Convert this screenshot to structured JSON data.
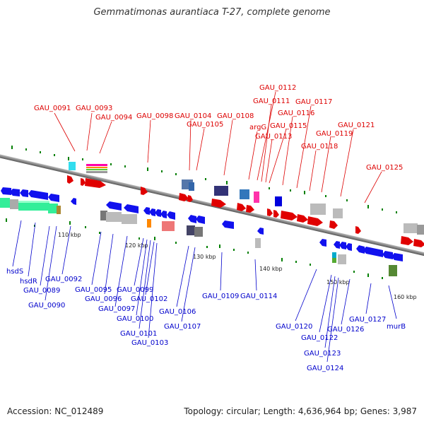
{
  "title": "Gemmatimonas aurantiaca T-27, complete genome",
  "footer": {
    "accession_label": "Accession:",
    "accession": "NC_012489",
    "topology_label": "Topology:",
    "topology": "circular",
    "length_label": "Length:",
    "length": "4,636,964 bp",
    "genes_label": "Genes:",
    "genes": "3,987"
  },
  "colors": {
    "forward_gene": "#ff0000",
    "reverse_gene": "#0000ff",
    "forward_label": "#dd0000",
    "reverse_label": "#0000cc",
    "backbone": "#888888",
    "tick": "#008000"
  },
  "ruler": [
    "110 kbp",
    "120 kbp",
    "130 kbp",
    "140 kbp",
    "150 kbp",
    "160 kbp"
  ],
  "labels_top": [
    "GAU_0091",
    "GAU_0093",
    "GAU_0094",
    "GAU_0098",
    "GAU_0104",
    "GAU_0105",
    "GAU_0108",
    "GAU_0112",
    "GAU_0111",
    "argG",
    "GAU_0113",
    "GAU_0115",
    "GAU_0116",
    "GAU_0117",
    "GAU_0119",
    "GAU_0118",
    "GAU_0121",
    "GAU_0125"
  ],
  "labels_bottom": [
    "hsdS",
    "hsdR",
    "GAU_0089",
    "GAU_0090",
    "GAU_0092",
    "GAU_0095",
    "GAU_0096",
    "GAU_0097",
    "GAU_0099",
    "GAU_0100",
    "GAU_0101",
    "GAU_0102",
    "GAU_0103",
    "GAU_0106",
    "GAU_0107",
    "GAU_0109",
    "GAU_0114",
    "GAU_0120",
    "GAU_0122",
    "GAU_0123",
    "GAU_0124",
    "GAU_0126",
    "GAU_0127",
    "murB"
  ]
}
